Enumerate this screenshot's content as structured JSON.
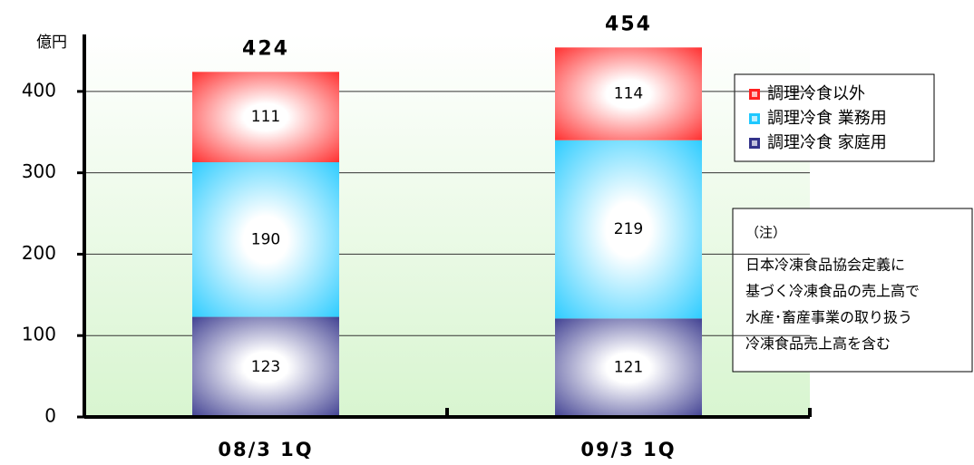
{
  "chart_data": {
    "type": "bar",
    "stacked": true,
    "unit_label": "億円",
    "categories": [
      "08/3 1Q",
      "09/3 1Q"
    ],
    "series": [
      {
        "name": "調理冷食 家庭用",
        "color": "#33338a",
        "values": [
          123,
          121
        ]
      },
      {
        "name": "調理冷食 業務用",
        "color": "#1ec8ff",
        "values": [
          190,
          219
        ]
      },
      {
        "name": "調理冷食以外",
        "color": "#ff2020",
        "values": [
          111,
          114
        ]
      }
    ],
    "totals": [
      424,
      454
    ],
    "ylim": [
      0,
      470
    ],
    "yticks": [
      0,
      100,
      200,
      300,
      400
    ],
    "grid": true,
    "note": {
      "title": "（注）",
      "lines": [
        "日本冷凍食品協会定義に",
        "基づく冷凍食品の売上高で",
        "水産･畜産事業の取り扱う",
        "冷凍食品売上高を含む"
      ]
    }
  }
}
